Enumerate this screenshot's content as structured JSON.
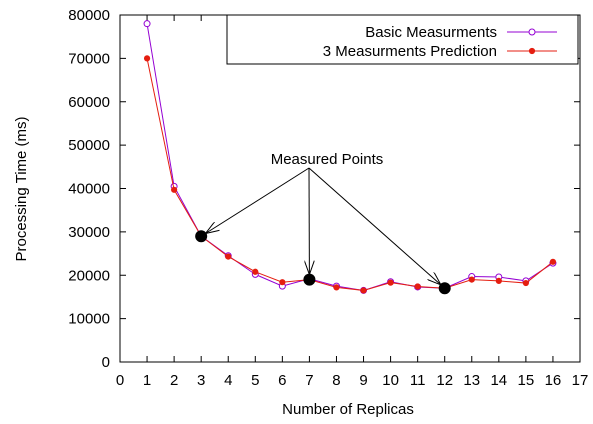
{
  "chart_data": {
    "type": "line",
    "title": "",
    "xlabel": "Number of Replicas",
    "ylabel": "Processing Time (ms)",
    "xlim": [
      0,
      17
    ],
    "ylim": [
      0,
      80000
    ],
    "xticks": [
      0,
      1,
      2,
      3,
      4,
      5,
      6,
      7,
      8,
      9,
      10,
      11,
      12,
      13,
      14,
      15,
      16,
      17
    ],
    "yticks": [
      0,
      10000,
      20000,
      30000,
      40000,
      50000,
      60000,
      70000,
      80000
    ],
    "grid": false,
    "legend_position": "top-right",
    "x": [
      1,
      2,
      3,
      4,
      5,
      6,
      7,
      8,
      9,
      10,
      11,
      12,
      13,
      14,
      15,
      16
    ],
    "series": [
      {
        "name": "Basic Measurments",
        "color": "#9400d3",
        "marker": "open-circle",
        "values": [
          78000,
          40500,
          29000,
          24500,
          20200,
          17500,
          19200,
          17500,
          16500,
          18500,
          17300,
          17000,
          19700,
          19600,
          18700,
          22800
        ]
      },
      {
        "name": "3 Measurments Prediction",
        "color": "#e51e10",
        "marker": "filled-circle",
        "values": [
          70000,
          39700,
          29000,
          24300,
          20800,
          18400,
          19000,
          17200,
          16500,
          18300,
          17400,
          17000,
          19000,
          18700,
          18200,
          23100
        ]
      }
    ],
    "measured_points": {
      "label": "Measured Points",
      "x": [
        3,
        7,
        12
      ],
      "values": [
        29000,
        19000,
        17000
      ]
    }
  }
}
